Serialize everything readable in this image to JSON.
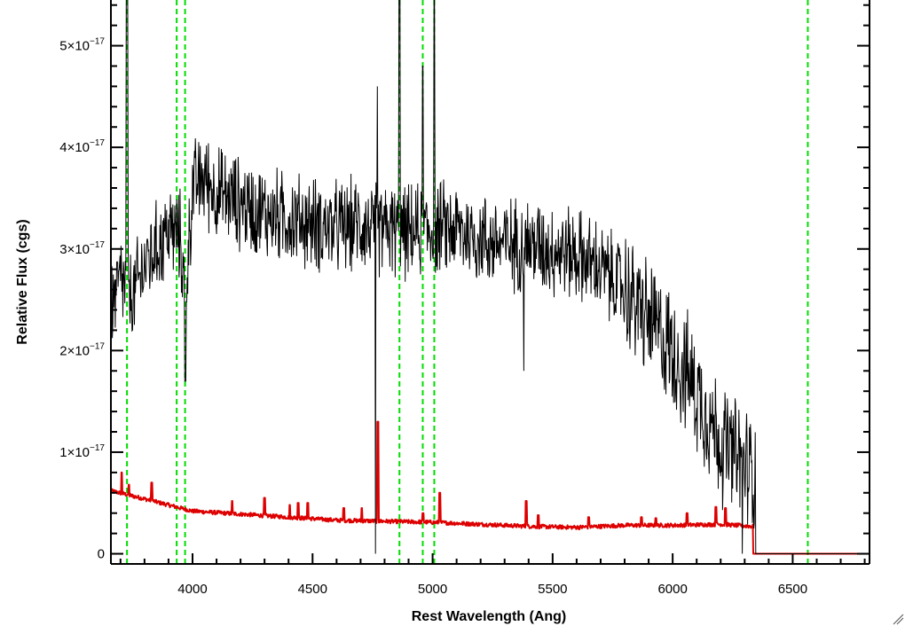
{
  "chart_data": {
    "type": "line",
    "title": "",
    "xlabel": "Rest Wavelength (Ang)",
    "ylabel": "Relative Flux (cgs)",
    "xlim": [
      3660,
      6820
    ],
    "ylim": [
      -1e-18,
      5.45e-17
    ],
    "x_ticks": [
      4000,
      4500,
      5000,
      5500,
      6000,
      6500
    ],
    "x_tick_labels": [
      "4000",
      "4500",
      "5000",
      "5500",
      "6000",
      "6500"
    ],
    "y_ticks": [
      0,
      1e-17,
      2e-17,
      3e-17,
      4e-17,
      5e-17
    ],
    "y_tick_labels": [
      {
        "mantissa": "0",
        "exp": ""
      },
      {
        "mantissa": "1×10",
        "exp": "−17"
      },
      {
        "mantissa": "2×10",
        "exp": "−17"
      },
      {
        "mantissa": "3×10",
        "exp": "−17"
      },
      {
        "mantissa": "4×10",
        "exp": "−17"
      },
      {
        "mantissa": "5×10",
        "exp": "−17"
      }
    ],
    "grid": false,
    "series": [
      {
        "id": "spectrum",
        "color": "#000000",
        "continuum": [
          [
            3670,
            2.5
          ],
          [
            3700,
            2.7
          ],
          [
            3750,
            2.5
          ],
          [
            3800,
            2.85
          ],
          [
            3850,
            3.0
          ],
          [
            3900,
            3.2
          ],
          [
            3950,
            3.1
          ],
          [
            3970,
            2.5
          ],
          [
            4000,
            3.6
          ],
          [
            4050,
            3.7
          ],
          [
            4100,
            3.55
          ],
          [
            4200,
            3.45
          ],
          [
            4300,
            3.35
          ],
          [
            4400,
            3.3
          ],
          [
            4500,
            3.25
          ],
          [
            4600,
            3.2
          ],
          [
            4700,
            3.25
          ],
          [
            4750,
            3.2
          ],
          [
            4800,
            3.2
          ],
          [
            4900,
            3.15
          ],
          [
            5000,
            3.2
          ],
          [
            5100,
            3.2
          ],
          [
            5200,
            3.1
          ],
          [
            5300,
            3.05
          ],
          [
            5400,
            3.05
          ],
          [
            5500,
            3.0
          ],
          [
            5600,
            2.95
          ],
          [
            5700,
            2.8
          ],
          [
            5800,
            2.6
          ],
          [
            5900,
            2.3
          ],
          [
            6000,
            2.0
          ],
          [
            6100,
            1.6
          ],
          [
            6200,
            1.1
          ],
          [
            6280,
            0.9
          ],
          [
            6340,
            0.8
          ]
        ],
        "features": [
          {
            "x": 3727,
            "flux": 5.5,
            "width": 4
          },
          {
            "x": 3970,
            "flux": 1.7,
            "width": 3
          },
          {
            "x": 4862,
            "flux": 5.5,
            "width": 3
          },
          {
            "x": 4959,
            "flux": 4.8,
            "width": 3
          },
          {
            "x": 5007,
            "flux": 5.5,
            "width": 3
          },
          {
            "x": 4770,
            "flux": 4.6,
            "width": 2
          },
          {
            "x": 4762,
            "flux": 0.0,
            "width": 2
          },
          {
            "x": 5380,
            "flux": 1.8,
            "width": 2
          },
          {
            "x": 6290,
            "flux": 0.0,
            "width": 2
          }
        ],
        "end_x": 6345,
        "after_end_value": 0.0,
        "noise_amplitude": 0.55
      },
      {
        "id": "error",
        "color": "#dd0000",
        "baseline": [
          [
            3660,
            0.62
          ],
          [
            3800,
            0.54
          ],
          [
            4000,
            0.42
          ],
          [
            4200,
            0.39
          ],
          [
            4400,
            0.36
          ],
          [
            4600,
            0.33
          ],
          [
            4800,
            0.32
          ],
          [
            5000,
            0.31
          ],
          [
            5200,
            0.29
          ],
          [
            5400,
            0.27
          ],
          [
            5600,
            0.26
          ],
          [
            5800,
            0.28
          ],
          [
            6000,
            0.28
          ],
          [
            6200,
            0.29
          ],
          [
            6330,
            0.27
          ]
        ],
        "spikes": [
          {
            "x": 3705,
            "flux": 0.8
          },
          {
            "x": 3735,
            "flux": 0.68
          },
          {
            "x": 3830,
            "flux": 0.7
          },
          {
            "x": 4165,
            "flux": 0.52
          },
          {
            "x": 4300,
            "flux": 0.55
          },
          {
            "x": 4405,
            "flux": 0.48
          },
          {
            "x": 4440,
            "flux": 0.5
          },
          {
            "x": 4480,
            "flux": 0.5
          },
          {
            "x": 4630,
            "flux": 0.45
          },
          {
            "x": 4705,
            "flux": 0.45
          },
          {
            "x": 4772,
            "flux": 1.3
          },
          {
            "x": 4960,
            "flux": 0.4
          },
          {
            "x": 5030,
            "flux": 0.6
          },
          {
            "x": 5390,
            "flux": 0.52
          },
          {
            "x": 5440,
            "flux": 0.38
          },
          {
            "x": 5650,
            "flux": 0.36
          },
          {
            "x": 5870,
            "flux": 0.36
          },
          {
            "x": 5930,
            "flux": 0.35
          },
          {
            "x": 6060,
            "flux": 0.4
          },
          {
            "x": 6180,
            "flux": 0.46
          },
          {
            "x": 6220,
            "flux": 0.45
          }
        ],
        "end_x": 6335,
        "after_end_value": 0.0
      }
    ],
    "reference_lines": {
      "color": "#00dd00",
      "style": "dashed",
      "x": [
        3727,
        3934,
        3969,
        4862,
        4959,
        5007,
        6563
      ]
    },
    "units_scale": 1e-17
  }
}
